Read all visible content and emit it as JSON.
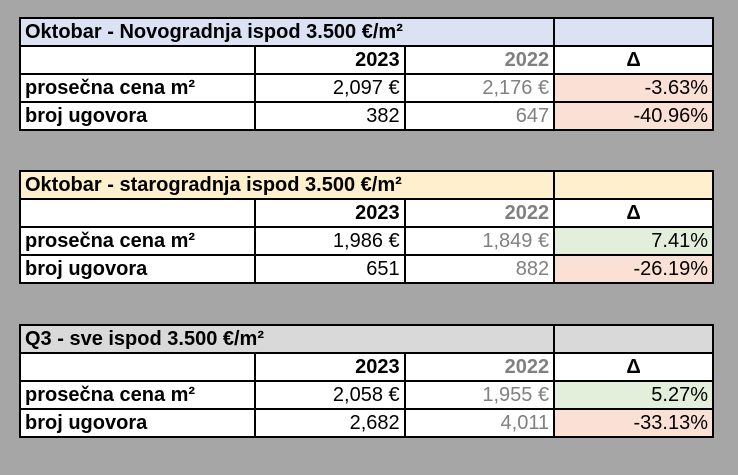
{
  "tables": [
    {
      "title": "Oktobar - Novogradnja ispod 3.500 €/m²",
      "title_color": "#dae2f3",
      "year_current": "2023",
      "year_previous": "2022",
      "delta_label": "Δ",
      "rows": [
        {
          "label": "prosečna cena m²",
          "current": "2,097 €",
          "previous": "2,176 €",
          "delta": "-3.63%",
          "delta_color": "#fbe0d5"
        },
        {
          "label": "broj ugovora",
          "current": "382",
          "previous": "647",
          "delta": "-40.96%",
          "delta_color": "#fbe0d5"
        }
      ]
    },
    {
      "title": "Oktobar - starogradnja ispod 3.500 €/m²",
      "title_color": "#fef0cd",
      "year_current": "2023",
      "year_previous": "2022",
      "delta_label": "Δ",
      "rows": [
        {
          "label": "prosečna cena m²",
          "current": "1,986 €",
          "previous": "1,849 €",
          "delta": "7.41%",
          "delta_color": "#e3efda"
        },
        {
          "label": "broj ugovora",
          "current": "651",
          "previous": "882",
          "delta": "-26.19%",
          "delta_color": "#fbe0d5"
        }
      ]
    },
    {
      "title": "Q3 - sve ispod 3.500 €/m²",
      "title_color": "#d9d9d9",
      "year_current": "2023",
      "year_previous": "2022",
      "delta_label": "Δ",
      "rows": [
        {
          "label": "prosečna cena m²",
          "current": "2,058 €",
          "previous": "1,955 €",
          "delta": "5.27%",
          "delta_color": "#e3efda"
        },
        {
          "label": "broj ugovora",
          "current": "2,682",
          "previous": "4,011",
          "delta": "-33.13%",
          "delta_color": "#fbe0d5"
        }
      ]
    }
  ]
}
